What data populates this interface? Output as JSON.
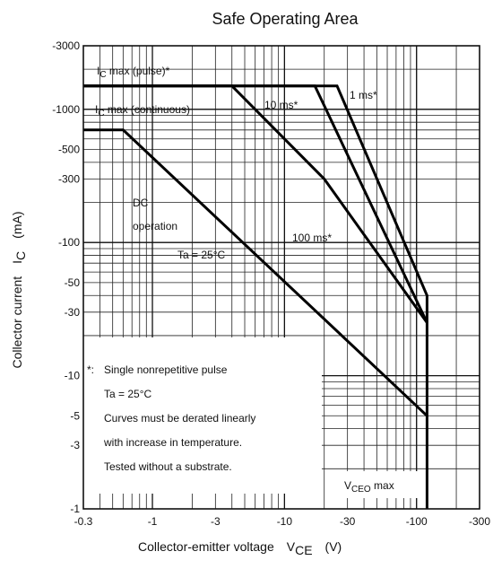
{
  "chart_data": {
    "type": "line",
    "title": "Safe Operating Area",
    "xlabel": {
      "prefix": "Collector-emitter voltage",
      "symbol": "V",
      "subscript": "CE",
      "unit": "(V)"
    },
    "ylabel": {
      "prefix": "Collector current",
      "symbol": "I",
      "subscript": "C",
      "unit": "(mA)"
    },
    "x_scale": "log",
    "y_scale": "log",
    "xlim": [
      -0.3,
      -300
    ],
    "ylim": [
      -1,
      -3000
    ],
    "x_ticks": [
      "-0.3",
      "-1",
      "-3",
      "-10",
      "-30",
      "-100",
      "-300"
    ],
    "y_ticks": [
      "-3000",
      "-1000",
      "-500",
      "-300",
      "-100",
      "-50",
      "-30",
      "-10",
      "-5",
      "-3",
      "-1"
    ],
    "grid": true,
    "series": [
      {
        "name": "1 ms*",
        "x": [
          -0.3,
          -25,
          -120,
          -120
        ],
        "y": [
          -1500,
          -1500,
          -40,
          -1
        ]
      },
      {
        "name": "10 ms*",
        "x": [
          -0.3,
          -17,
          -120
        ],
        "y": [
          -1500,
          -1500,
          -25
        ]
      },
      {
        "name": "100 ms*",
        "x": [
          -0.3,
          -4,
          -20,
          -120
        ],
        "y": [
          -1500,
          -1500,
          -300,
          -25
        ]
      },
      {
        "name": "DC operation",
        "x": [
          -0.3,
          -0.6,
          -120
        ],
        "y": [
          -700,
          -700,
          -5
        ]
      }
    ],
    "annotations": {
      "ic_pulse": {
        "prefix": "I",
        "sub": "C",
        "text": " max (pulse)*"
      },
      "ic_cont": {
        "prefix": "I",
        "sub": "C",
        "text": " max (continuous)"
      },
      "ten_ms": "10 ms*",
      "one_ms": "1 ms*",
      "dc_line1": "DC",
      "dc_line2": "operation",
      "hundred_ms": "100 ms*",
      "ta_curve": "Ta = 25°C",
      "vceo": {
        "prefix": "V",
        "sub": "CEO",
        "text": " max"
      }
    },
    "notes": {
      "marker": "*:",
      "lines": [
        "Single nonrepetitive pulse",
        "Ta = 25°C",
        "Curves must be derated linearly",
        "with increase in temperature.",
        "Tested without a substrate."
      ]
    }
  }
}
